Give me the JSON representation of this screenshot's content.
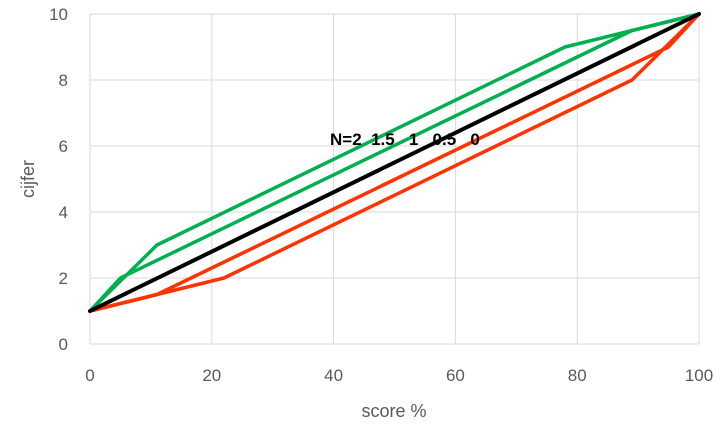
{
  "chart_data": {
    "type": "line",
    "xlabel": "score %",
    "ylabel": "cijfer",
    "xlim": [
      0,
      100
    ],
    "ylim": [
      0,
      10
    ],
    "x_ticks": [
      "0",
      "20",
      "40",
      "60",
      "80",
      "100"
    ],
    "y_ticks": [
      "0",
      "2",
      "4",
      "6",
      "8",
      "10"
    ],
    "grid": true,
    "annotation": "N=2  1.5   1   0.5   0",
    "series": [
      {
        "color": "#00b050",
        "points": [
          [
            0,
            1
          ],
          [
            11,
            3
          ],
          [
            78,
            9
          ],
          [
            100,
            10
          ]
        ]
      },
      {
        "color": "#00b050",
        "points": [
          [
            0,
            1
          ],
          [
            5,
            2
          ],
          [
            89,
            9.5
          ],
          [
            100,
            10
          ]
        ]
      },
      {
        "color": "#000000",
        "points": [
          [
            0,
            1
          ],
          [
            100,
            10
          ]
        ]
      },
      {
        "color": "#ff3300",
        "points": [
          [
            0,
            1
          ],
          [
            11,
            1.5
          ],
          [
            95,
            9
          ],
          [
            100,
            10
          ]
        ]
      },
      {
        "color": "#ff3300",
        "points": [
          [
            0,
            1
          ],
          [
            11,
            1.5
          ],
          [
            22,
            2
          ],
          [
            89,
            8
          ],
          [
            100,
            10
          ]
        ]
      }
    ]
  }
}
